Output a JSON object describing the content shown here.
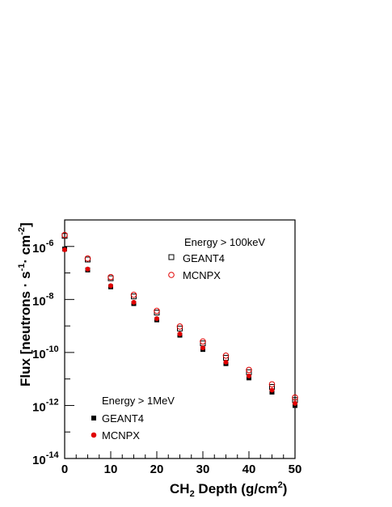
{
  "chart_data": {
    "type": "scatter",
    "xlabel": {
      "main": "CH",
      "sub": "2",
      "rest": " Depth (g/cm",
      "sup": "2",
      "end": ")"
    },
    "ylabel": {
      "main": "Flux [neutrons · s",
      "sup1": "-1",
      "mid": "· cm",
      "sup2": "-2",
      "end": "]"
    },
    "xlim": [
      0,
      50
    ],
    "ylim_log10": [
      -14,
      -5
    ],
    "y_scale": "log",
    "grid": false,
    "x_ticks": [
      0,
      10,
      20,
      30,
      40,
      50
    ],
    "y_ticks": [
      {
        "base": "10",
        "exp": "-6",
        "value": -6
      },
      {
        "base": "10",
        "exp": "-8",
        "value": -8
      },
      {
        "base": "10",
        "exp": "-10",
        "value": -10
      },
      {
        "base": "10",
        "exp": "-12",
        "value": -12
      },
      {
        "base": "10",
        "exp": "-14",
        "value": -14
      }
    ],
    "x": [
      0,
      5,
      10,
      15,
      20,
      25,
      30,
      35,
      40,
      45,
      50
    ],
    "legends": [
      {
        "title": "Energy > 100keV",
        "placement": "top-right",
        "entries": [
          "GEANT4",
          "MCNPX"
        ]
      },
      {
        "title": "Energy > 1MeV",
        "placement": "bottom-left",
        "entries": [
          "GEANT4",
          "MCNPX"
        ]
      }
    ],
    "series": [
      {
        "name": "GEANT4",
        "group": "Energy > 100keV",
        "marker": "open-square",
        "color": "#000000",
        "values": [
          2.5e-06,
          3.2e-07,
          6.3e-08,
          1.3e-08,
          3.2e-09,
          8e-10,
          2.2e-10,
          6.3e-11,
          1.8e-11,
          5e-12,
          1.6e-12
        ]
      },
      {
        "name": "MCNPX",
        "group": "Energy > 100keV",
        "marker": "open-circle",
        "color": "#e00000",
        "values": [
          2.7e-06,
          3.5e-07,
          7e-08,
          1.5e-08,
          3.7e-09,
          9.5e-10,
          2.6e-10,
          7.6e-11,
          2.2e-11,
          6.3e-12,
          2e-12
        ]
      },
      {
        "name": "GEANT4",
        "group": "Energy > 1MeV",
        "marker": "filled-square",
        "color": "#000000",
        "values": [
          8e-07,
          1.3e-07,
          3e-08,
          7e-09,
          1.7e-09,
          4.5e-10,
          1.3e-10,
          3.8e-11,
          1.1e-11,
          3.2e-12,
          1e-12
        ]
      },
      {
        "name": "MCNPX",
        "group": "Energy > 1MeV",
        "marker": "filled-circle",
        "color": "#e00000",
        "values": [
          7.5e-07,
          1.4e-07,
          3.3e-08,
          7.8e-09,
          1.9e-09,
          5e-10,
          1.5e-10,
          4.3e-11,
          1.3e-11,
          3.8e-12,
          1.2e-12
        ]
      }
    ]
  }
}
